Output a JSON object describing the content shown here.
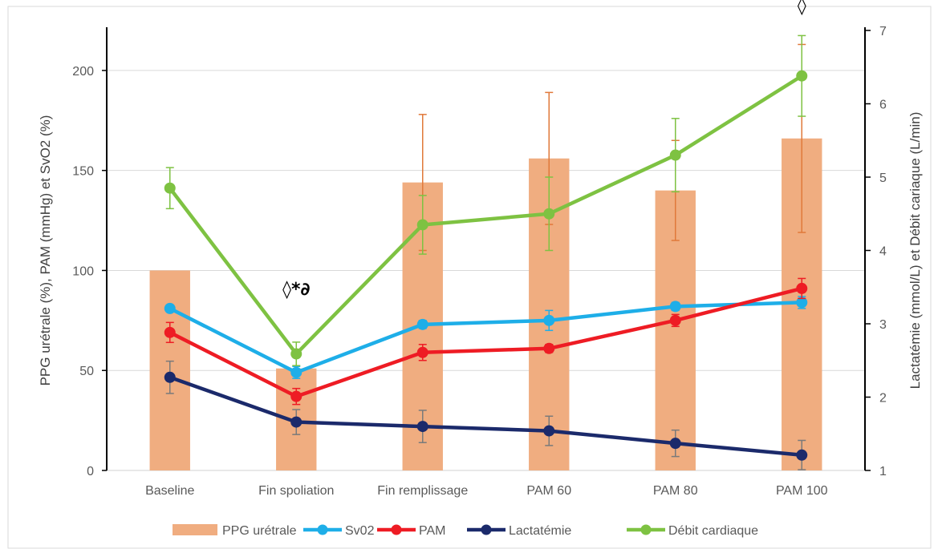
{
  "chart_data": {
    "type": "bar",
    "categories": [
      "Baseline",
      "Fin spoliation",
      "Fin remplissage",
      "PAM 60",
      "PAM 80",
      "PAM 100"
    ],
    "ylabel": "PPG urétrale (%), PAM (mmHg) et SvO2 (%)",
    "y2label": "Lactatémie (mmol/L) et Débit cariaque (L/min)",
    "ylim": [
      0,
      220
    ],
    "y2lim": [
      1,
      7
    ],
    "yticks": [
      0,
      50,
      100,
      150,
      200
    ],
    "y2ticks": [
      1,
      2,
      3,
      4,
      5,
      6,
      7
    ],
    "grid": true,
    "legend_position": "bottom",
    "series": [
      {
        "name": "PPG urétrale",
        "kind": "bar",
        "axis": "left",
        "color": "#f0ad80",
        "values": [
          100,
          51,
          144,
          156,
          140,
          166
        ],
        "error": [
          0,
          0,
          34,
          33,
          25,
          47
        ]
      },
      {
        "name": "Sv02",
        "kind": "line",
        "axis": "left",
        "color": "#1eaee8",
        "values": [
          81,
          49,
          73,
          75,
          82,
          84
        ],
        "error": [
          0,
          3,
          2,
          5,
          2,
          3
        ]
      },
      {
        "name": "PAM",
        "kind": "line",
        "axis": "left",
        "color": "#ee1c24",
        "values": [
          69,
          37,
          59,
          61,
          75,
          91
        ],
        "error": [
          5,
          4,
          4,
          2,
          3,
          5
        ]
      },
      {
        "name": "Lactatémie",
        "kind": "line",
        "axis": "right",
        "color": "#1b2a6b",
        "values": [
          2.27,
          1.66,
          1.6,
          1.54,
          1.37,
          1.21
        ],
        "error": [
          0.22,
          0.17,
          0.22,
          0.2,
          0.18,
          0.2
        ]
      },
      {
        "name": "Débit cardiaque",
        "kind": "line",
        "axis": "right",
        "color": "#7ec242",
        "values": [
          4.85,
          2.59,
          4.35,
          4.5,
          5.3,
          6.38
        ],
        "error": [
          0.28,
          0.16,
          0.4,
          0.5,
          0.5,
          0.55
        ]
      }
    ],
    "annotations": [
      {
        "category": "Fin spoliation",
        "text": "◊*∂"
      },
      {
        "category": "PAM 100",
        "text": "◊"
      }
    ]
  }
}
